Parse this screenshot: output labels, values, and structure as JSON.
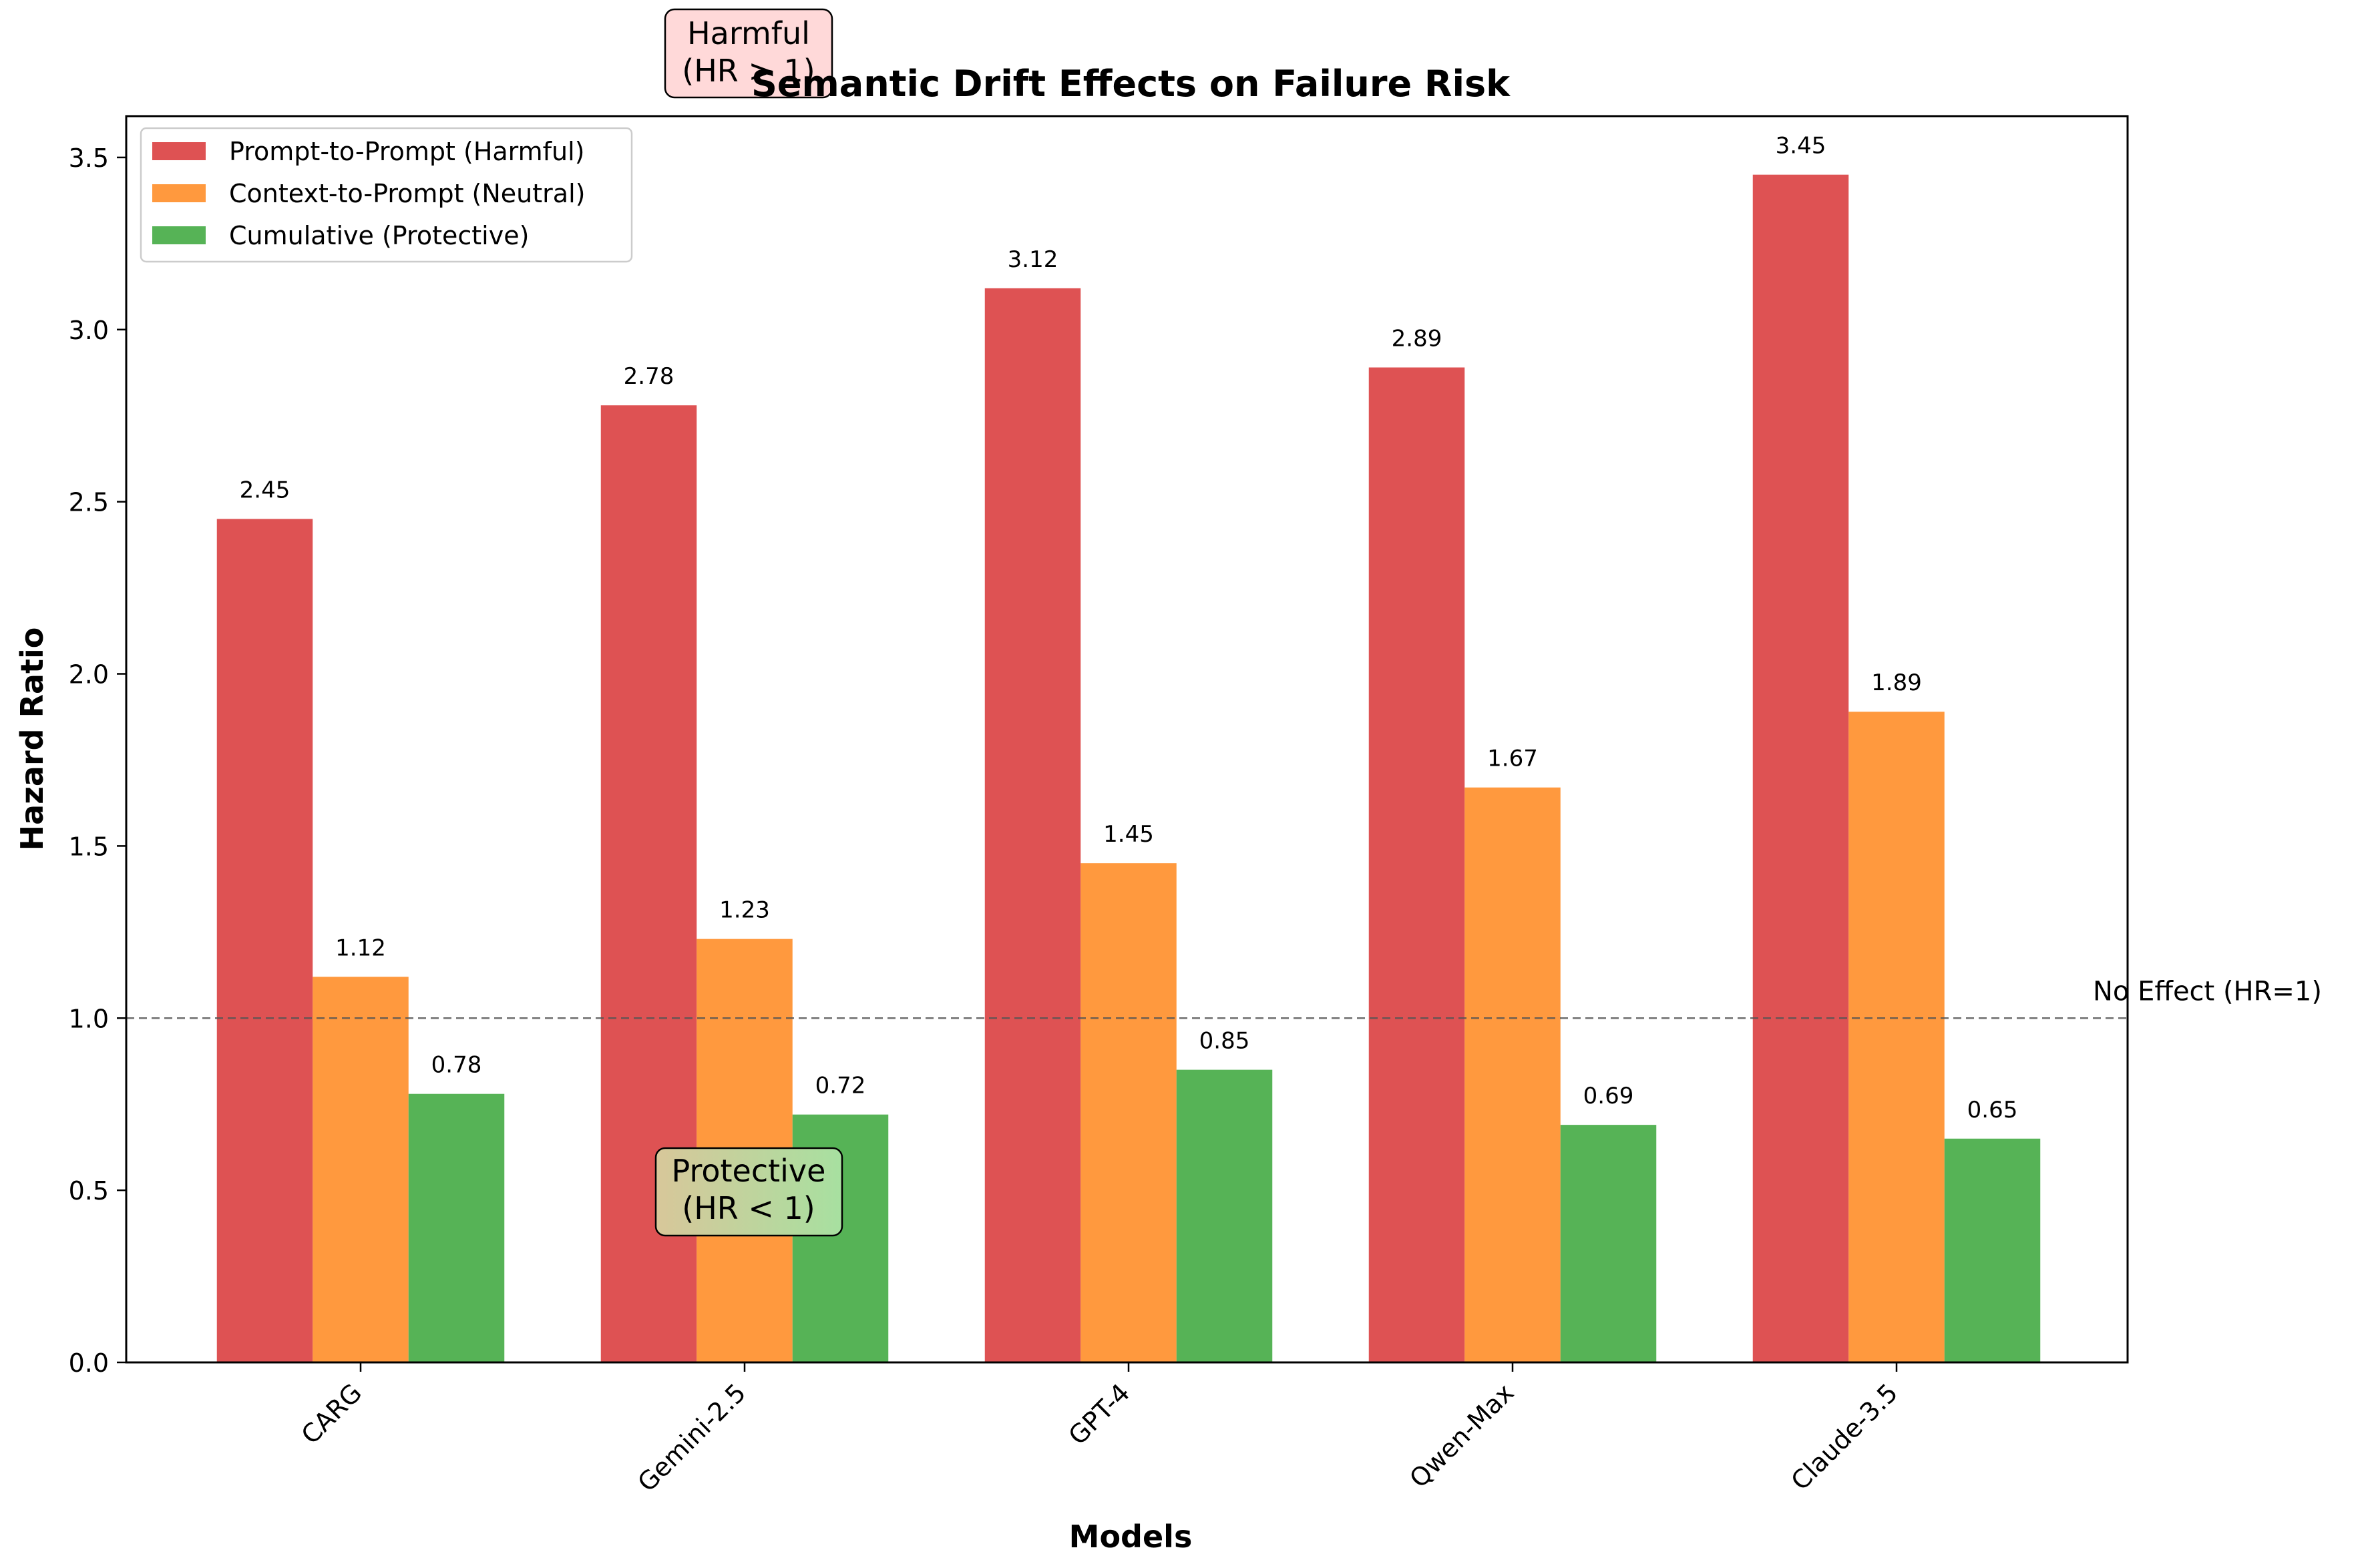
{
  "chart_data": {
    "type": "bar",
    "title": "Semantic Drift Effects on Failure Risk",
    "xlabel": "Models",
    "ylabel": "Hazard Ratio",
    "categories": [
      "CARG",
      "Gemini-2.5",
      "GPT-4",
      "Qwen-Max",
      "Claude-3.5"
    ],
    "series": [
      {
        "name": "Prompt-to-Prompt (Harmful)",
        "color": "#d62728",
        "values": [
          2.45,
          2.78,
          3.12,
          2.89,
          3.45
        ]
      },
      {
        "name": "Context-to-Prompt (Neutral)",
        "color": "#ff7f0e",
        "values": [
          1.12,
          1.23,
          1.45,
          1.67,
          1.89
        ]
      },
      {
        "name": "Cumulative (Protective)",
        "color": "#2ca02c",
        "values": [
          0.78,
          0.72,
          0.85,
          0.69,
          0.65
        ]
      }
    ],
    "value_labels": [
      [
        "2.45",
        "2.78",
        "3.12",
        "2.89",
        "3.45"
      ],
      [
        "1.12",
        "1.23",
        "1.45",
        "1.67",
        "1.89"
      ],
      [
        "0.78",
        "0.72",
        "0.85",
        "0.69",
        "0.65"
      ]
    ],
    "ylim": [
      0,
      3.62
    ],
    "yticks": [
      "0.0",
      "0.5",
      "1.0",
      "1.5",
      "2.0",
      "2.5",
      "3.0",
      "3.5"
    ],
    "ytick_values": [
      0,
      0.5,
      1.0,
      1.5,
      2.0,
      2.5,
      3.0,
      3.5
    ],
    "reference_line": {
      "value": 1.0,
      "label": "No Effect (HR=1)",
      "color": "#555555"
    },
    "annotations": [
      {
        "name": "harmful-annotation",
        "lines": [
          "Harmful",
          "(HR > 1)"
        ],
        "color": "#ffcccc"
      },
      {
        "name": "protective-annotation",
        "lines": [
          "Protective",
          "(HR < 1)"
        ],
        "color": "lightgreen-gradient"
      }
    ],
    "legend_position": "top-left",
    "grid": false
  }
}
